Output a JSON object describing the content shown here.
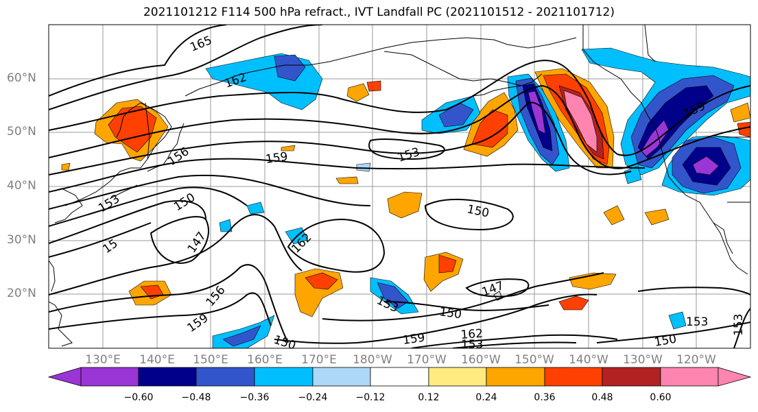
{
  "title": "2021101212 F114 500 hPa refract., IVT Landfall PC (2021101512 - 2021101712)",
  "map": {
    "projection": "PlateCarree",
    "extent": {
      "lon_min": 120,
      "lon_max": 250,
      "lat_min": 10,
      "lat_max": 70
    },
    "lon_labels": [
      "130°E",
      "140°E",
      "150°E",
      "160°E",
      "170°E",
      "180°W",
      "170°W",
      "160°W",
      "150°W",
      "140°W",
      "130°W",
      "120°W"
    ],
    "lat_labels": [
      "60°N",
      "50°N",
      "40°N",
      "30°N",
      "20°N"
    ],
    "contour_labels": [
      "165",
      "162",
      "156",
      "159",
      "153",
      "150",
      "147",
      "15",
      "162",
      "156",
      "159",
      "153",
      "150",
      "147",
      "162",
      "159",
      "150",
      "153",
      "150",
      "153",
      "159",
      "150",
      "153",
      "153"
    ],
    "gridline_color": "#9a9a9a"
  },
  "colorbar": {
    "ticks": [
      "−0.60",
      "−0.48",
      "−0.36",
      "−0.24",
      "−0.12",
      "0.12",
      "0.24",
      "0.36",
      "0.48",
      "0.60"
    ],
    "colors": [
      "#9a35d6",
      "#00008b",
      "#3355cc",
      "#00bfff",
      "#add8f7",
      "#ffffff",
      "#ffeb80",
      "#ffa500",
      "#ff4000",
      "#b22222",
      "#ff85b0"
    ]
  }
}
